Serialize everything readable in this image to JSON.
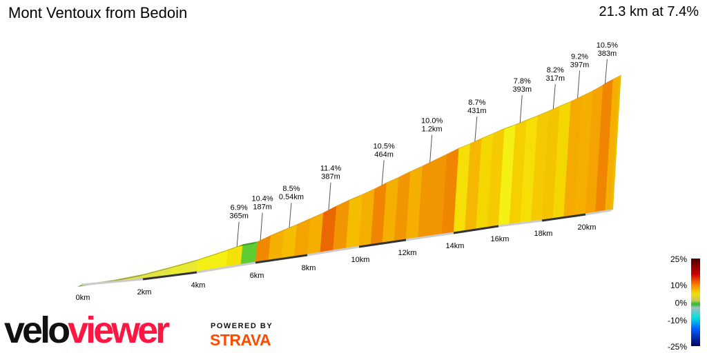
{
  "header": {
    "title": "Mont Ventoux from Bedoin",
    "summary": "21.3 km at 7.4%"
  },
  "branding": {
    "logo_part1": "velo",
    "logo_part2": "viewer",
    "powered_by": "POWERED BY",
    "strava": "STRAVA"
  },
  "chart_data": {
    "type": "area",
    "title": "Mont Ventoux from Bedoin",
    "xlabel": "",
    "ylabel": "",
    "total_distance_km": 21.3,
    "x_ticks": [
      "0km",
      "2km",
      "4km",
      "6km",
      "8km",
      "10km",
      "12km",
      "14km",
      "16km",
      "18km",
      "20km"
    ],
    "x_tick_values": [
      0,
      2,
      4,
      6,
      8,
      10,
      12,
      14,
      16,
      18,
      20
    ],
    "segments": [
      {
        "start_km": 0,
        "end_km": 1,
        "gradient": 2
      },
      {
        "start_km": 1,
        "end_km": 2,
        "gradient": 4
      },
      {
        "start_km": 2,
        "end_km": 3,
        "gradient": 4.5
      },
      {
        "start_km": 3,
        "end_km": 4,
        "gradient": 5
      },
      {
        "start_km": 4,
        "end_km": 5,
        "gradient": 6
      },
      {
        "start_km": 5,
        "end_km": 5.5,
        "gradient": 6.9
      },
      {
        "start_km": 5.5,
        "end_km": 6,
        "gradient": 1
      },
      {
        "start_km": 6,
        "end_km": 6.5,
        "gradient": 10.4
      },
      {
        "start_km": 6.5,
        "end_km": 7,
        "gradient": 9
      },
      {
        "start_km": 7,
        "end_km": 7.5,
        "gradient": 8.5
      },
      {
        "start_km": 7.5,
        "end_km": 8,
        "gradient": 9.5
      },
      {
        "start_km": 8,
        "end_km": 8.5,
        "gradient": 9
      },
      {
        "start_km": 8.5,
        "end_km": 9,
        "gradient": 11.4
      },
      {
        "start_km": 9,
        "end_km": 9.5,
        "gradient": 10
      },
      {
        "start_km": 9.5,
        "end_km": 10,
        "gradient": 8.5
      },
      {
        "start_km": 10,
        "end_km": 10.5,
        "gradient": 9
      },
      {
        "start_km": 10.5,
        "end_km": 11,
        "gradient": 10.5
      },
      {
        "start_km": 11,
        "end_km": 11.5,
        "gradient": 9
      },
      {
        "start_km": 11.5,
        "end_km": 12,
        "gradient": 10
      },
      {
        "start_km": 12,
        "end_km": 12.5,
        "gradient": 9
      },
      {
        "start_km": 12.5,
        "end_km": 13,
        "gradient": 10
      },
      {
        "start_km": 13,
        "end_km": 13.5,
        "gradient": 10
      },
      {
        "start_km": 13.5,
        "end_km": 14,
        "gradient": 10.5
      },
      {
        "start_km": 14,
        "end_km": 14.5,
        "gradient": 7
      },
      {
        "start_km": 14.5,
        "end_km": 15,
        "gradient": 8.7
      },
      {
        "start_km": 15,
        "end_km": 15.5,
        "gradient": 7.5
      },
      {
        "start_km": 15.5,
        "end_km": 16,
        "gradient": 8
      },
      {
        "start_km": 16,
        "end_km": 16.5,
        "gradient": 6
      },
      {
        "start_km": 16.5,
        "end_km": 17,
        "gradient": 7.8
      },
      {
        "start_km": 17,
        "end_km": 17.5,
        "gradient": 7
      },
      {
        "start_km": 17.5,
        "end_km": 18,
        "gradient": 8
      },
      {
        "start_km": 18,
        "end_km": 18.5,
        "gradient": 8.2
      },
      {
        "start_km": 18.5,
        "end_km": 19,
        "gradient": 7.5
      },
      {
        "start_km": 19,
        "end_km": 19.5,
        "gradient": 9.2
      },
      {
        "start_km": 19.5,
        "end_km": 20,
        "gradient": 9
      },
      {
        "start_km": 20,
        "end_km": 20.5,
        "gradient": 9.5
      },
      {
        "start_km": 20.5,
        "end_km": 21,
        "gradient": 10.5
      },
      {
        "start_km": 21,
        "end_km": 21.3,
        "gradient": 9
      }
    ],
    "annotations": [
      {
        "km": 5.3,
        "gradient": "6.9%",
        "length": "365m"
      },
      {
        "km": 6.1,
        "gradient": "10.4%",
        "length": "187m"
      },
      {
        "km": 7.2,
        "gradient": "8.5%",
        "length": "0.54km"
      },
      {
        "km": 8.7,
        "gradient": "11.4%",
        "length": "387m"
      },
      {
        "km": 10.8,
        "gradient": "10.5%",
        "length": "464m"
      },
      {
        "km": 12.8,
        "gradient": "10.0%",
        "length": "1.2km"
      },
      {
        "km": 14.7,
        "gradient": "8.7%",
        "length": "431m"
      },
      {
        "km": 16.7,
        "gradient": "7.8%",
        "length": "393m"
      },
      {
        "km": 18.2,
        "gradient": "8.2%",
        "length": "317m"
      },
      {
        "km": 19.3,
        "gradient": "9.2%",
        "length": "397m"
      },
      {
        "km": 20.6,
        "gradient": "10.5%",
        "length": "383m"
      }
    ],
    "legend": {
      "labels": [
        "25%",
        "10%",
        "0%",
        "-10%",
        "-25%"
      ],
      "values": [
        25,
        10,
        0,
        -10,
        -25
      ],
      "placement": "bottom-right"
    }
  }
}
